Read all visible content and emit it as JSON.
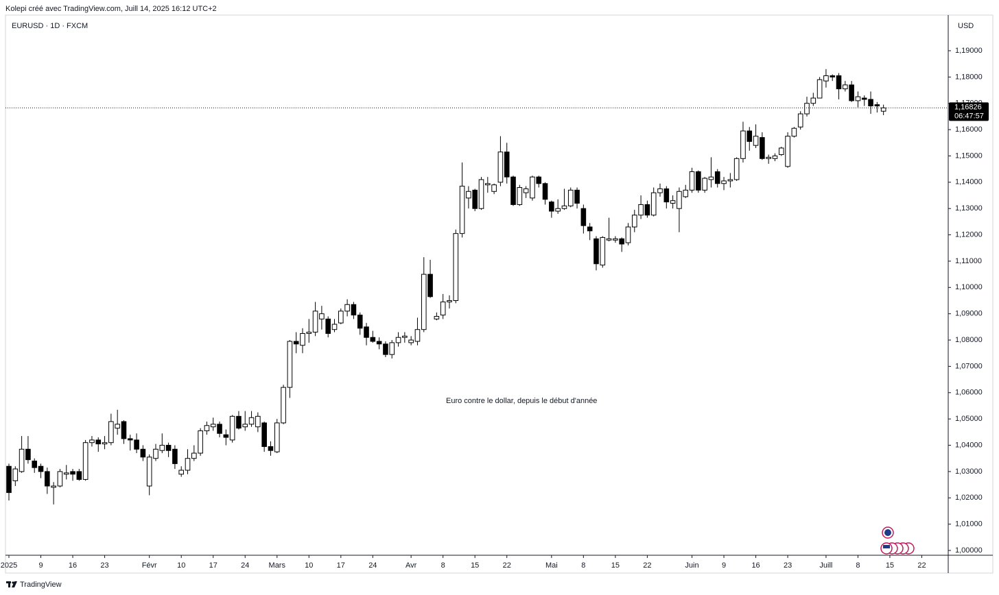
{
  "header": {
    "credit": "Kolepi créé avec TradingView.com, Juill 14, 2025 16:12 UTC+2"
  },
  "chart_data": {
    "type": "candlestick",
    "title": "EURUSD · 1D · FXCM",
    "currency": "USD",
    "annotation": "Euro contre le dollar, depuis le début d'année",
    "up_color": "#ffffff",
    "down_color": "#000000",
    "border_color": "#000000",
    "x": [
      "2025-01-02",
      "2025-01-03",
      "2025-01-06",
      "2025-01-07",
      "2025-01-08",
      "2025-01-09",
      "2025-01-10",
      "2025-01-13",
      "2025-01-14",
      "2025-01-15",
      "2025-01-16",
      "2025-01-17",
      "2025-01-20",
      "2025-01-21",
      "2025-01-22",
      "2025-01-23",
      "2025-01-24",
      "2025-01-27",
      "2025-01-28",
      "2025-01-29",
      "2025-01-30",
      "2025-01-31",
      "2025-02-03",
      "2025-02-04",
      "2025-02-05",
      "2025-02-06",
      "2025-02-07",
      "2025-02-10",
      "2025-02-11",
      "2025-02-12",
      "2025-02-13",
      "2025-02-14",
      "2025-02-17",
      "2025-02-18",
      "2025-02-19",
      "2025-02-20",
      "2025-02-21",
      "2025-02-24",
      "2025-02-25",
      "2025-02-26",
      "2025-02-27",
      "2025-02-28",
      "2025-03-03",
      "2025-03-04",
      "2025-03-05",
      "2025-03-06",
      "2025-03-07",
      "2025-03-10",
      "2025-03-11",
      "2025-03-12",
      "2025-03-13",
      "2025-03-14",
      "2025-03-17",
      "2025-03-18",
      "2025-03-19",
      "2025-03-20",
      "2025-03-21",
      "2025-03-24",
      "2025-03-25",
      "2025-03-26",
      "2025-03-27",
      "2025-03-28",
      "2025-03-31",
      "2025-04-01",
      "2025-04-02",
      "2025-04-03",
      "2025-04-04",
      "2025-04-07",
      "2025-04-08",
      "2025-04-09",
      "2025-04-10",
      "2025-04-11",
      "2025-04-14",
      "2025-04-15",
      "2025-04-16",
      "2025-04-17",
      "2025-04-18",
      "2025-04-21",
      "2025-04-22",
      "2025-04-23",
      "2025-04-24",
      "2025-04-25",
      "2025-04-28",
      "2025-04-29",
      "2025-04-30",
      "2025-05-01",
      "2025-05-02",
      "2025-05-05",
      "2025-05-06",
      "2025-05-07",
      "2025-05-08",
      "2025-05-09",
      "2025-05-12",
      "2025-05-13",
      "2025-05-14",
      "2025-05-15",
      "2025-05-16",
      "2025-05-19",
      "2025-05-20",
      "2025-05-21",
      "2025-05-22",
      "2025-05-23",
      "2025-05-26",
      "2025-05-27",
      "2025-05-28",
      "2025-05-29",
      "2025-05-30",
      "2025-06-02",
      "2025-06-03",
      "2025-06-04",
      "2025-06-05",
      "2025-06-06",
      "2025-06-09",
      "2025-06-10",
      "2025-06-11",
      "2025-06-12",
      "2025-06-13",
      "2025-06-16",
      "2025-06-17",
      "2025-06-18",
      "2025-06-19",
      "2025-06-20",
      "2025-06-23",
      "2025-06-24",
      "2025-06-25",
      "2025-06-26",
      "2025-06-27",
      "2025-06-30",
      "2025-07-01",
      "2025-07-02",
      "2025-07-03",
      "2025-07-04",
      "2025-07-07",
      "2025-07-08",
      "2025-07-09",
      "2025-07-10",
      "2025-07-11",
      "2025-07-14"
    ],
    "open": [
      1.032,
      1.0265,
      1.03,
      1.0385,
      1.034,
      1.032,
      1.03,
      1.024,
      1.0245,
      1.029,
      1.03,
      1.03,
      1.027,
      1.041,
      1.042,
      1.0405,
      1.041,
      1.0465,
      1.049,
      1.0425,
      1.042,
      1.0385,
      1.0245,
      1.035,
      1.038,
      1.04,
      1.0385,
      1.029,
      1.0305,
      1.035,
      1.037,
      1.0455,
      1.047,
      1.048,
      1.044,
      1.042,
      1.051,
      1.047,
      1.048,
      1.047,
      1.0485,
      1.0395,
      1.0375,
      1.0485,
      1.062,
      1.0795,
      1.078,
      1.0825,
      1.083,
      1.088,
      1.088,
      1.084,
      1.0865,
      1.091,
      1.0935,
      1.0895,
      1.085,
      1.081,
      1.0795,
      1.0785,
      1.0745,
      1.079,
      1.081,
      1.079,
      1.0795,
      1.084,
      1.105,
      1.088,
      1.0895,
      1.0945,
      1.095,
      1.1205,
      1.134,
      1.137,
      1.13,
      1.139,
      1.1365,
      1.14,
      1.1515,
      1.142,
      1.1315,
      1.136,
      1.134,
      1.142,
      1.1395,
      1.1325,
      1.129,
      1.13,
      1.131,
      1.137,
      1.13,
      1.123,
      1.1185,
      1.1085,
      1.118,
      1.118,
      1.1185,
      1.117,
      1.123,
      1.1275,
      1.1315,
      1.1275,
      1.136,
      1.1375,
      1.132,
      1.13,
      1.1345,
      1.137,
      1.144,
      1.137,
      1.141,
      1.144,
      1.1395,
      1.1405,
      1.141,
      1.149,
      1.1595,
      1.154,
      1.157,
      1.149,
      1.149,
      1.1505,
      1.146,
      1.1575,
      1.161,
      1.166,
      1.17,
      1.172,
      1.1785,
      1.1805,
      1.1805,
      1.1755,
      1.177,
      1.171,
      1.172,
      1.1715,
      1.1695,
      1.167
    ],
    "high": [
      1.033,
      1.032,
      1.0435,
      1.0435,
      1.035,
      1.033,
      1.0315,
      1.026,
      1.031,
      1.0325,
      1.031,
      1.031,
      1.042,
      1.0435,
      1.043,
      1.0435,
      1.052,
      1.0535,
      1.0495,
      1.044,
      1.0445,
      1.04,
      1.0365,
      1.0405,
      1.0445,
      1.041,
      1.04,
      1.032,
      1.0385,
      1.04,
      1.0465,
      1.049,
      1.0505,
      1.049,
      1.046,
      1.0515,
      1.053,
      1.053,
      1.053,
      1.0525,
      1.049,
      1.0415,
      1.05,
      1.063,
      1.08,
      1.083,
      1.0845,
      1.088,
      1.0945,
      1.093,
      1.089,
      1.088,
      1.092,
      1.0955,
      1.0945,
      1.0905,
      1.0865,
      1.0835,
      1.081,
      1.0795,
      1.08,
      1.083,
      1.083,
      1.0815,
      1.0885,
      1.1115,
      1.1105,
      1.0905,
      1.0975,
      1.097,
      1.122,
      1.1475,
      1.1385,
      1.1375,
      1.142,
      1.142,
      1.1395,
      1.1575,
      1.155,
      1.1425,
      1.139,
      1.1385,
      1.1425,
      1.1425,
      1.14,
      1.133,
      1.1335,
      1.1375,
      1.138,
      1.138,
      1.1315,
      1.1245,
      1.1195,
      1.1195,
      1.1265,
      1.1195,
      1.119,
      1.1245,
      1.1295,
      1.135,
      1.133,
      1.138,
      1.1395,
      1.1385,
      1.135,
      1.138,
      1.139,
      1.1455,
      1.1445,
      1.142,
      1.1495,
      1.145,
      1.142,
      1.1435,
      1.1495,
      1.163,
      1.161,
      1.162,
      1.159,
      1.1505,
      1.151,
      1.1535,
      1.159,
      1.161,
      1.167,
      1.1725,
      1.174,
      1.18,
      1.183,
      1.181,
      1.1815,
      1.1785,
      1.1785,
      1.1745,
      1.173,
      1.1745,
      1.1705,
      1.1695
    ],
    "low": [
      1.019,
      1.0245,
      1.0295,
      1.033,
      1.0295,
      1.0275,
      1.0215,
      1.0175,
      1.024,
      1.027,
      1.0265,
      1.0265,
      1.0265,
      1.0395,
      1.0375,
      1.0385,
      1.04,
      1.044,
      1.0405,
      1.038,
      1.037,
      1.034,
      1.021,
      1.034,
      1.037,
      1.0355,
      1.031,
      1.028,
      1.029,
      1.034,
      1.036,
      1.044,
      1.0455,
      1.043,
      1.04,
      1.041,
      1.046,
      1.0455,
      1.047,
      1.045,
      1.0375,
      1.036,
      1.037,
      1.048,
      1.058,
      1.075,
      1.075,
      1.079,
      1.0815,
      1.084,
      1.081,
      1.083,
      1.086,
      1.089,
      1.088,
      1.082,
      1.078,
      1.079,
      1.0765,
      1.0735,
      1.073,
      1.0775,
      1.079,
      1.078,
      1.078,
      1.083,
      1.096,
      1.0875,
      1.088,
      1.092,
      1.094,
      1.119,
      1.13,
      1.129,
      1.1295,
      1.136,
      1.1355,
      1.1385,
      1.1395,
      1.131,
      1.131,
      1.134,
      1.133,
      1.138,
      1.1315,
      1.1265,
      1.128,
      1.1295,
      1.1305,
      1.13,
      1.1205,
      1.118,
      1.1065,
      1.1075,
      1.1175,
      1.117,
      1.1135,
      1.116,
      1.121,
      1.126,
      1.1265,
      1.127,
      1.1345,
      1.13,
      1.13,
      1.121,
      1.134,
      1.136,
      1.136,
      1.136,
      1.138,
      1.138,
      1.137,
      1.138,
      1.1405,
      1.1475,
      1.152,
      1.153,
      1.1485,
      1.147,
      1.148,
      1.15,
      1.1455,
      1.157,
      1.16,
      1.165,
      1.169,
      1.172,
      1.176,
      1.1785,
      1.1715,
      1.1745,
      1.1705,
      1.1685,
      1.169,
      1.166,
      1.1665,
      1.1655
    ],
    "close": [
      1.022,
      1.031,
      1.0385,
      1.0345,
      1.0315,
      1.03,
      1.0245,
      1.0245,
      1.03,
      1.0295,
      1.029,
      1.027,
      1.041,
      1.042,
      1.0405,
      1.041,
      1.049,
      1.048,
      1.0425,
      1.042,
      1.0385,
      1.0355,
      1.0355,
      1.0385,
      1.04,
      1.038,
      1.033,
      1.0305,
      1.035,
      1.037,
      1.0455,
      1.0475,
      1.048,
      1.0445,
      1.043,
      1.051,
      1.0465,
      1.048,
      1.0505,
      1.051,
      1.0395,
      1.038,
      1.0485,
      1.062,
      1.0795,
      1.0785,
      1.0825,
      1.083,
      1.091,
      1.09,
      1.0825,
      1.086,
      1.091,
      1.0935,
      1.0895,
      1.0845,
      1.081,
      1.0795,
      1.0785,
      1.0745,
      1.079,
      1.081,
      1.0815,
      1.08,
      1.084,
      1.105,
      1.0965,
      1.089,
      1.0945,
      1.095,
      1.1205,
      1.1385,
      1.1365,
      1.13,
      1.141,
      1.1395,
      1.139,
      1.1515,
      1.142,
      1.1315,
      1.138,
      1.1375,
      1.142,
      1.1395,
      1.1335,
      1.129,
      1.13,
      1.131,
      1.137,
      1.132,
      1.1235,
      1.1215,
      1.109,
      1.119,
      1.1185,
      1.1185,
      1.1165,
      1.123,
      1.1275,
      1.1315,
      1.1275,
      1.136,
      1.1375,
      1.1325,
      1.133,
      1.1365,
      1.137,
      1.144,
      1.137,
      1.1415,
      1.142,
      1.1395,
      1.1405,
      1.141,
      1.149,
      1.1595,
      1.1555,
      1.1575,
      1.149,
      1.1495,
      1.15,
      1.153,
      1.1575,
      1.1605,
      1.166,
      1.17,
      1.172,
      1.179,
      1.1805,
      1.18,
      1.1755,
      1.177,
      1.171,
      1.1725,
      1.1715,
      1.169,
      1.169,
      1.16826
    ],
    "last_price": {
      "value": 1.16826,
      "label": "1,16826"
    },
    "countdown": "06:47:57",
    "ylim": [
      0.99818,
      1.20355
    ],
    "yticks": [
      {
        "value": 1.0,
        "label": "1,00000"
      },
      {
        "value": 1.01,
        "label": "1,01000"
      },
      {
        "value": 1.02,
        "label": "1,02000"
      },
      {
        "value": 1.03,
        "label": "1,03000"
      },
      {
        "value": 1.04,
        "label": "1,04000"
      },
      {
        "value": 1.05,
        "label": "1,05000"
      },
      {
        "value": 1.06,
        "label": "1,06000"
      },
      {
        "value": 1.07,
        "label": "1,07000"
      },
      {
        "value": 1.08,
        "label": "1,08000"
      },
      {
        "value": 1.09,
        "label": "1,09000"
      },
      {
        "value": 1.1,
        "label": "1,10000"
      },
      {
        "value": 1.11,
        "label": "1,11000"
      },
      {
        "value": 1.12,
        "label": "1,12000"
      },
      {
        "value": 1.13,
        "label": "1,13000"
      },
      {
        "value": 1.14,
        "label": "1,14000"
      },
      {
        "value": 1.15,
        "label": "1,15000"
      },
      {
        "value": 1.16,
        "label": "1,16000"
      },
      {
        "value": 1.17,
        "label": "1,17000"
      },
      {
        "value": 1.18,
        "label": "1,18000"
      },
      {
        "value": 1.19,
        "label": "1,19000"
      }
    ],
    "xticks": [
      {
        "value": "2025-01-02",
        "label": "2025"
      },
      {
        "value": "2025-01-09",
        "label": "9"
      },
      {
        "value": "2025-01-16",
        "label": "16"
      },
      {
        "value": "2025-01-23",
        "label": "23"
      },
      {
        "value": "2025-02-03",
        "label": "Févr"
      },
      {
        "value": "2025-02-10",
        "label": "10"
      },
      {
        "value": "2025-02-17",
        "label": "17"
      },
      {
        "value": "2025-02-24",
        "label": "24"
      },
      {
        "value": "2025-03-03",
        "label": "Mars"
      },
      {
        "value": "2025-03-10",
        "label": "10"
      },
      {
        "value": "2025-03-17",
        "label": "17"
      },
      {
        "value": "2025-03-24",
        "label": "24"
      },
      {
        "value": "2025-04-01",
        "label": "Avr"
      },
      {
        "value": "2025-04-08",
        "label": "8"
      },
      {
        "value": "2025-04-15",
        "label": "15"
      },
      {
        "value": "2025-04-22",
        "label": "22"
      },
      {
        "value": "2025-05-01",
        "label": "Mai"
      },
      {
        "value": "2025-05-08",
        "label": "8"
      },
      {
        "value": "2025-05-15",
        "label": "15"
      },
      {
        "value": "2025-05-22",
        "label": "22"
      },
      {
        "value": "2025-06-02",
        "label": "Juin"
      },
      {
        "value": "2025-06-09",
        "label": "9"
      },
      {
        "value": "2025-06-16",
        "label": "16"
      },
      {
        "value": "2025-06-23",
        "label": "23"
      },
      {
        "value": "2025-07-01",
        "label": "Juill"
      },
      {
        "value": "2025-07-08",
        "label": "8"
      },
      {
        "value": "2025-07-15",
        "label": "15"
      },
      {
        "value": "2025-07-22",
        "label": "22"
      }
    ]
  },
  "footer": {
    "brand": "TradingView"
  }
}
